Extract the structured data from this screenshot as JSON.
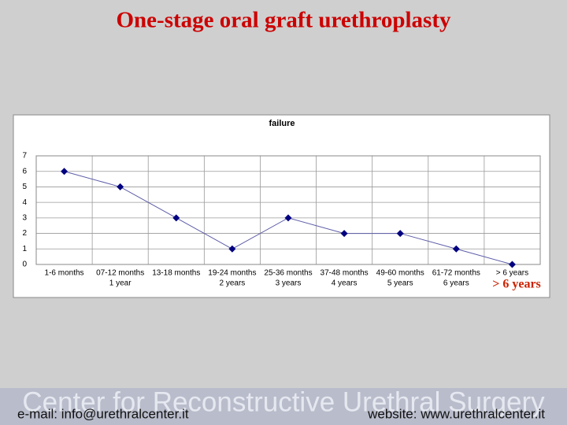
{
  "slide_title": "One-stage oral graft urethroplasty",
  "chart_data": {
    "type": "line",
    "title": "failure",
    "categories": [
      "1-6 months",
      "07-12 months",
      "13-18 months",
      "19-24 months",
      "25-36 months",
      "37-48 months",
      "49-60 months",
      "61-72 months",
      "> 6 years"
    ],
    "category_sublabels": [
      null,
      "1 year",
      null,
      "2 years",
      "3 years",
      "4 years",
      "5 years",
      "6 years",
      null
    ],
    "values": [
      6,
      5,
      3,
      1,
      3,
      2,
      2,
      1,
      0
    ],
    "color": "#000080",
    "line_color": "#5c5ca8",
    "ylim": [
      0,
      7
    ],
    "yticks": [
      0,
      1,
      2,
      3,
      4,
      5,
      6,
      7
    ],
    "grid": true,
    "annotation": "> 6 years"
  },
  "footer": {
    "banner": "Center for Reconstructive Urethral Surgery",
    "email": "e-mail: info@urethralcenter.it",
    "website": "website: www.urethralcenter.it"
  }
}
